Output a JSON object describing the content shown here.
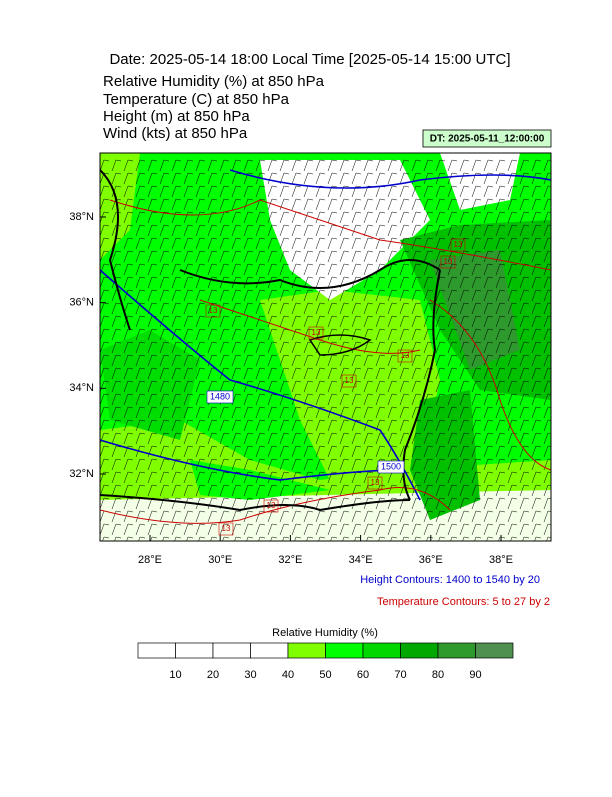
{
  "header": {
    "title": "Date: 2025-05-14  18:00 Local Time [2025-05-14  15:00 UTC]",
    "fields": [
      "Relative Humidity   (%)     at   850 hPa",
      "Temperature   (C)     at   850 hPa",
      "Height   (m)     at   850 hPa",
      "Wind   (kts)     at   850 hPa"
    ],
    "dt_label": "DT: 2025-05-11_12:00:00"
  },
  "map": {
    "lon_ticks": [
      {
        "value": 28,
        "label": "28°E"
      },
      {
        "value": 30,
        "label": "30°E"
      },
      {
        "value": 32,
        "label": "32°E"
      },
      {
        "value": 34,
        "label": "34°E"
      },
      {
        "value": 36,
        "label": "36°E"
      },
      {
        "value": 38,
        "label": "38°E"
      }
    ],
    "lat_ticks": [
      {
        "value": 32,
        "label": "32°N"
      },
      {
        "value": 34,
        "label": "34°N"
      },
      {
        "value": 36,
        "label": "36°N"
      },
      {
        "value": 38,
        "label": "38°N"
      }
    ],
    "height_contour_labels": [
      "1480",
      "1500"
    ],
    "temperature_contour_labels": [
      "13",
      "13",
      "13",
      "13",
      "13",
      "13",
      "13",
      "13",
      "13"
    ],
    "height_note": "Height Contours: 1400 to 1540 by 20",
    "temperature_note": "Temperature Contours: 5 to 27 by 2"
  },
  "colorbar": {
    "title": "Relative Humidity  (%)",
    "ticks": [
      10,
      20,
      30,
      40,
      50,
      60,
      70,
      80,
      90
    ],
    "colors": [
      "#ffffff",
      "#ffffff",
      "#ffffff",
      "#ffffff",
      "#80ff00",
      "#00ff00",
      "#00d800",
      "#00a800",
      "#2e9a2e",
      "#4f8f4f"
    ]
  }
}
